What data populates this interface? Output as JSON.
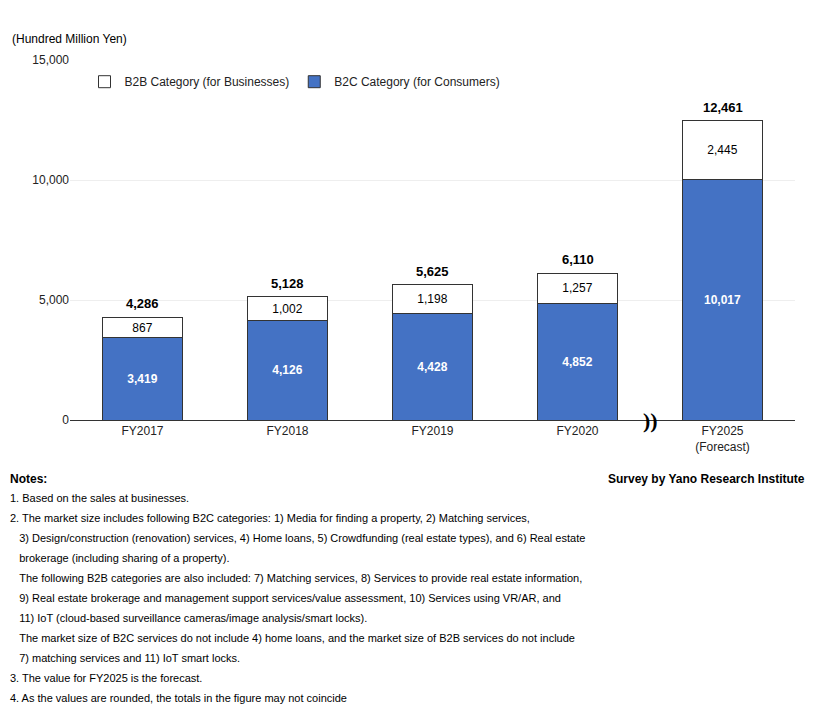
{
  "chart_data": {
    "type": "bar",
    "stacked": true,
    "ylabel": "(Hundred Million Yen)",
    "categories": [
      "FY2017",
      "FY2018",
      "FY2019",
      "FY2020",
      "FY2025\n(Forecast)"
    ],
    "series": [
      {
        "name": "B2C Category (for Consumers)",
        "color": "#4472C4",
        "values": [
          3419,
          4126,
          4428,
          4852,
          10017
        ],
        "value_labels": [
          "3,419",
          "4,126",
          "4,428",
          "4,852",
          "10,017"
        ]
      },
      {
        "name": "B2B Category (for Businesses)",
        "color": "#FFFFFF",
        "values": [
          867,
          1002,
          1198,
          1257,
          2445
        ],
        "value_labels": [
          "867",
          "1,002",
          "1,198",
          "1,257",
          "2,445"
        ]
      }
    ],
    "totals": [
      4286,
      5128,
      5625,
      6110,
      12461
    ],
    "total_labels": [
      "4,286",
      "5,128",
      "5,625",
      "6,110",
      "12,461"
    ],
    "ylim": [
      0,
      15000
    ],
    "yticks": [
      0,
      {
        "value": 5000,
        "label": "5,000"
      },
      {
        "value": 10000,
        "label": "10,000"
      },
      {
        "value": 15000,
        "label": "15,000"
      }
    ],
    "grid": true,
    "legend": "upper left",
    "data_labels": true,
    "break_mark": "))",
    "notes_heading": "Notes:",
    "source": "Survey by Yano Research Institute",
    "notes": [
      "1. Based on the sales at businesses.",
      "2. The market size includes following B2C categories: 1) Media for finding a property, 2) Matching services,",
      "   3) Design/construction (renovation) services, 4) Home loans, 5) Crowdfunding (real estate types), and 6) Real estate",
      "   brokerage (including sharing of a property).",
      "   The following B2B categories are also included: 7) Matching services, 8) Services to provide real estate information,",
      "   9) Real estate brokerage and management support services/value assessment, 10) Services using VR/AR, and",
      "   11) IoT (cloud-based surveillance cameras/image analysis/smart locks).",
      "   The market size of B2C services do not include 4) home loans, and the market size of B2B services do not include",
      "   7) matching services and 11) IoT smart locks.",
      "3. The value for FY2025 is the forecast.",
      "4. As the values are rounded, the totals in the figure may not coincide"
    ]
  }
}
